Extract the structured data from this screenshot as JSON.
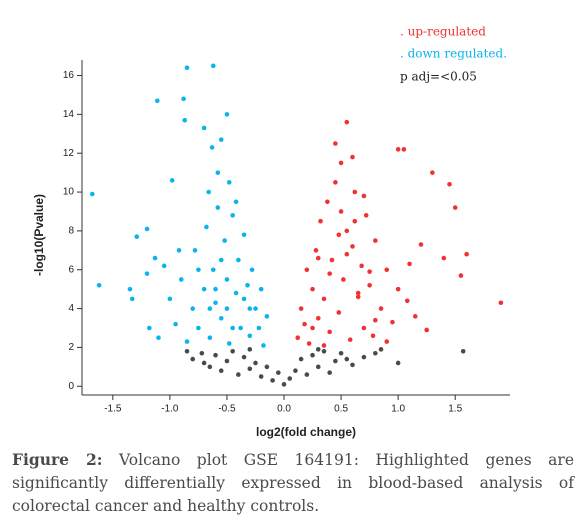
{
  "chart_data": {
    "type": "scatter",
    "x_label": "log2(fold change)",
    "y_label": "-log10(Pvalue)",
    "annotation": "p adj=<0.05",
    "xlim": [
      -1.77,
      1.98
    ],
    "ylim": [
      -0.45,
      16.8
    ],
    "xticks": [
      -1.5,
      {
        "value": -1,
        "label": "-1.0"
      },
      -0.5,
      {
        "value": 0,
        "label": "0.0"
      },
      0.5,
      {
        "value": 1,
        "label": "1.0"
      },
      1.5
    ],
    "yticks": [
      0,
      2,
      4,
      6,
      8,
      10,
      12,
      14,
      16
    ],
    "series": [
      {
        "name": ". up-regulated",
        "color": "#f03232",
        "x": [
          1.9,
          0.55,
          1.0,
          1.05,
          1.45,
          1.3,
          1.5,
          1.6,
          1.55,
          1.4,
          1.2,
          0.12,
          0.15,
          0.18,
          0.2,
          0.22,
          0.25,
          0.28,
          0.3,
          0.32,
          0.35,
          0.38,
          0.4,
          0.42,
          0.45,
          0.48,
          0.5,
          0.52,
          0.55,
          0.58,
          0.6,
          0.62,
          0.65,
          0.68,
          0.7,
          0.72,
          0.75,
          0.78,
          0.8,
          0.85,
          0.9,
          0.95,
          1.0,
          1.08,
          1.15,
          1.25,
          0.45,
          0.5,
          0.6,
          0.55,
          0.4,
          0.35,
          0.7,
          0.65,
          0.8,
          0.3,
          0.25,
          0.48,
          0.62,
          0.9,
          0.75,
          1.1
        ],
        "values": [
          4.3,
          13.6,
          12.2,
          12.2,
          10.4,
          11.0,
          9.2,
          6.8,
          5.7,
          6.6,
          7.3,
          2.5,
          4.0,
          3.2,
          6.0,
          2.2,
          5.0,
          7.0,
          3.5,
          8.5,
          4.5,
          9.5,
          2.8,
          6.5,
          10.5,
          3.8,
          11.5,
          5.5,
          8.0,
          2.4,
          7.2,
          10.0,
          4.6,
          6.2,
          3.0,
          8.8,
          5.2,
          2.6,
          7.5,
          4.0,
          6.0,
          3.3,
          5.0,
          4.4,
          3.6,
          2.9,
          12.5,
          9.0,
          11.8,
          6.8,
          5.8,
          2.1,
          9.8,
          4.8,
          3.4,
          6.6,
          3.0,
          7.8,
          8.5,
          2.3,
          5.9,
          6.3
        ]
      },
      {
        "name": ". down regulated.",
        "color": "#0ab4ee",
        "x": [
          -1.68,
          -1.62,
          -0.85,
          -0.62,
          -1.11,
          -0.88,
          -0.87,
          -0.7,
          -0.5,
          -0.55,
          -0.63,
          -0.98,
          -1.2,
          -1.29,
          -1.35,
          -1.33,
          -1.13,
          -1.05,
          -1.2,
          -1.18,
          -1.1,
          -1.0,
          -0.95,
          -0.9,
          -0.85,
          -0.8,
          -0.78,
          -0.75,
          -0.7,
          -0.68,
          -0.65,
          -0.62,
          -0.6,
          -0.58,
          -0.55,
          -0.52,
          -0.5,
          -0.48,
          -0.45,
          -0.42,
          -0.4,
          -0.38,
          -0.35,
          -0.32,
          -0.3,
          -0.28,
          -0.25,
          -0.22,
          -0.2,
          -0.18,
          -0.15,
          -0.58,
          -0.48,
          -0.66,
          -0.42,
          -0.92,
          -0.75,
          -0.6,
          -0.5,
          -0.45,
          -0.35,
          -0.3,
          -0.55,
          -0.65
        ],
        "values": [
          9.9,
          5.2,
          16.4,
          16.5,
          14.7,
          14.8,
          13.7,
          13.3,
          14.0,
          12.7,
          12.3,
          10.6,
          8.1,
          7.7,
          5.0,
          4.5,
          6.6,
          6.2,
          5.8,
          3.0,
          2.5,
          4.5,
          3.2,
          5.5,
          2.3,
          4.0,
          7.0,
          3.0,
          5.0,
          8.2,
          2.5,
          6.0,
          4.3,
          9.2,
          3.5,
          7.5,
          5.5,
          2.2,
          8.8,
          4.8,
          6.5,
          3.0,
          7.8,
          5.2,
          2.6,
          6.0,
          4.0,
          3.0,
          5.0,
          2.1,
          3.6,
          11.0,
          10.5,
          10.0,
          9.5,
          7.0,
          6.0,
          5.0,
          4.0,
          3.0,
          4.5,
          4.0,
          6.5,
          4.0
        ]
      },
      {
        "color": "#4a4a4a",
        "x": [
          -0.85,
          -0.8,
          -0.72,
          -0.65,
          -0.6,
          -0.55,
          -0.5,
          -0.45,
          -0.4,
          -0.35,
          -0.3,
          -0.25,
          -0.2,
          -0.15,
          -0.1,
          -0.05,
          0.0,
          0.05,
          0.1,
          0.15,
          0.2,
          0.25,
          0.3,
          0.35,
          0.4,
          0.45,
          0.5,
          0.6,
          0.7,
          0.8,
          0.85,
          1.57,
          1.0,
          -0.7,
          -0.3,
          0.3,
          0.55
        ],
        "values": [
          1.8,
          1.4,
          1.7,
          1.0,
          1.6,
          0.8,
          1.3,
          1.8,
          0.6,
          1.5,
          0.9,
          1.2,
          0.5,
          1.0,
          0.3,
          0.7,
          0.1,
          0.4,
          0.8,
          1.4,
          0.6,
          1.6,
          1.0,
          1.8,
          0.7,
          1.3,
          1.7,
          1.1,
          1.5,
          1.7,
          1.9,
          1.8,
          1.2,
          1.2,
          1.9,
          1.9,
          1.4
        ]
      }
    ]
  },
  "caption": {
    "label": "Figure 2:",
    "text": "Volcano plot GSE 164191: Highlighted genes are significantly differentially expressed in blood-based analysis of colorectal cancer and healthy controls."
  }
}
